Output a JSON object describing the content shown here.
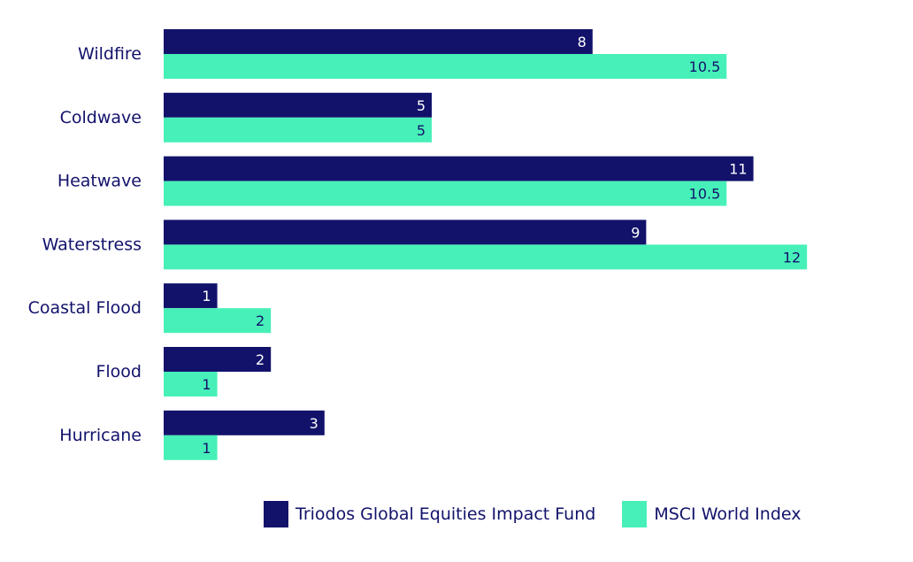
{
  "chart_data": {
    "type": "bar",
    "orientation": "horizontal",
    "categories": [
      "Wildfire",
      "Coldwave",
      "Heatwave",
      "Waterstress",
      "Coastal Flood",
      "Flood",
      "Hurricane"
    ],
    "series": [
      {
        "name": "Triodos Global Equities Impact Fund",
        "values": [
          8,
          5,
          11,
          9,
          1,
          2,
          3
        ],
        "labels": [
          "8",
          "5",
          "11",
          "9",
          "1",
          "2",
          "3"
        ],
        "color": "#12126b",
        "label_color": "#ffffff"
      },
      {
        "name": "MSCI World Index",
        "values": [
          10.5,
          5,
          10.5,
          12,
          2,
          1,
          1
        ],
        "labels": [
          "10.5",
          "5",
          "10.5",
          "12",
          "2",
          "1",
          "1"
        ],
        "color": "#47f0b8",
        "label_color": "#12126b"
      }
    ],
    "xlim": [
      0,
      12
    ],
    "grid": false,
    "legend_position": "bottom-right",
    "title": "",
    "xlabel": "",
    "ylabel": ""
  }
}
